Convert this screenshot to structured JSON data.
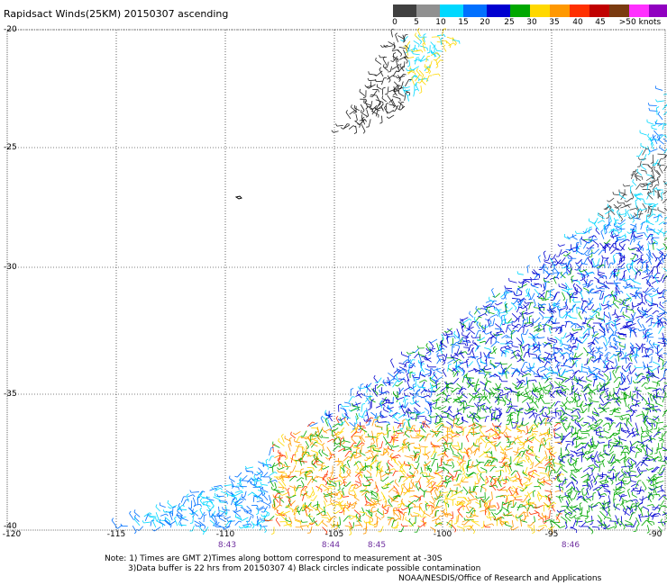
{
  "title": "Rapidsact Winds(25KM) 20150307 ascending",
  "colorbar": {
    "labels": [
      "0",
      "5",
      "10",
      "15",
      "20",
      "25",
      "30",
      "35",
      "40",
      "45",
      ">50 knots"
    ],
    "colors": [
      "#444444",
      "#888888",
      "#1ec8f0",
      "#00a0ff",
      "#0000dd",
      "#00b000",
      "#ffd800",
      "#ffa000",
      "#ff5000",
      "#e00000",
      "#8b0000",
      "#7a3b10",
      "#ff40ff",
      "#b000e0",
      "#500080"
    ]
  },
  "latitude_labels": [
    "-20",
    "-25",
    "-30",
    "-35",
    "-40"
  ],
  "longitude_labels": [
    "-120",
    "-115",
    "-110",
    "-105",
    "-100",
    "-95",
    "-90"
  ],
  "time_labels": [
    "8:43",
    "8:44",
    "8:45",
    "8:46"
  ],
  "notes": {
    "line1": "Note: 1) Times are GMT 2)Times along bottom correspond to measurement at -30S",
    "line2": "3)Data buffer is 22 hrs from 20150307 4) Black circles indicate possible contamination",
    "credit": "NOAA/NESDIS/Office of Research and Applications"
  },
  "map_extent": {
    "lon": [
      -120,
      -90
    ],
    "lat": [
      -40,
      -20
    ]
  }
}
